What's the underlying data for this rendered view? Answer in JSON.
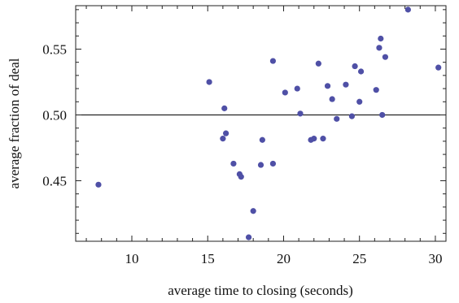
{
  "chart_data": {
    "type": "scatter",
    "title": "",
    "xlabel": "average time to closing (seconds)",
    "ylabel": "average fraction of deal",
    "xlim": [
      6.3,
      30.7
    ],
    "ylim": [
      0.404,
      0.583
    ],
    "x_ticks": [
      10,
      15,
      20,
      25,
      30
    ],
    "x_tick_labels": [
      "10",
      "15",
      "20",
      "25",
      "30"
    ],
    "y_ticks": [
      0.45,
      0.5,
      0.55
    ],
    "y_tick_labels": [
      "0.45",
      "0.50",
      "0.55"
    ],
    "reference_line_y": 0.5,
    "grid": false,
    "point_color": "#4f50a6",
    "series": [
      {
        "points": [
          [
            7.8,
            0.447
          ],
          [
            15.1,
            0.525
          ],
          [
            16.0,
            0.482
          ],
          [
            16.1,
            0.505
          ],
          [
            16.2,
            0.486
          ],
          [
            16.7,
            0.463
          ],
          [
            17.1,
            0.455
          ],
          [
            17.2,
            0.453
          ],
          [
            17.7,
            0.407
          ],
          [
            18.0,
            0.427
          ],
          [
            18.5,
            0.462
          ],
          [
            18.6,
            0.481
          ],
          [
            19.3,
            0.541
          ],
          [
            19.3,
            0.463
          ],
          [
            20.1,
            0.517
          ],
          [
            20.9,
            0.52
          ],
          [
            21.1,
            0.501
          ],
          [
            21.8,
            0.481
          ],
          [
            22.0,
            0.482
          ],
          [
            22.3,
            0.539
          ],
          [
            22.6,
            0.482
          ],
          [
            22.9,
            0.522
          ],
          [
            23.2,
            0.512
          ],
          [
            23.5,
            0.497
          ],
          [
            24.1,
            0.523
          ],
          [
            24.5,
            0.499
          ],
          [
            24.7,
            0.537
          ],
          [
            25.0,
            0.51
          ],
          [
            25.1,
            0.533
          ],
          [
            26.1,
            0.519
          ],
          [
            26.3,
            0.551
          ],
          [
            26.4,
            0.558
          ],
          [
            26.5,
            0.5
          ],
          [
            26.7,
            0.544
          ],
          [
            28.2,
            0.58
          ],
          [
            30.2,
            0.536
          ]
        ]
      }
    ]
  }
}
